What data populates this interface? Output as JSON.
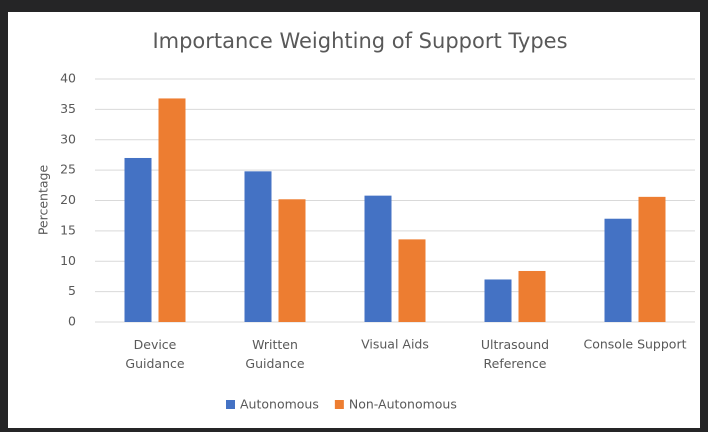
{
  "chart_data": {
    "type": "bar",
    "title": "Importance Weighting of Support Types",
    "y_label": "Percentage",
    "categories": [
      "Device\nGuidance",
      "Written\nGuidance",
      "Visual Aids",
      "Ultrasound\nReference",
      "Console Support"
    ],
    "series": [
      {
        "name": "Autonomous",
        "color": "#4472c4",
        "values": [
          27,
          24.8,
          20.8,
          7,
          17
        ]
      },
      {
        "name": "Non-Autonomous",
        "color": "#ed7d31",
        "values": [
          36.8,
          20.2,
          13.6,
          8.4,
          20.6
        ]
      }
    ],
    "ylim": [
      0,
      40
    ],
    "yticks": [
      0,
      5,
      10,
      15,
      20,
      25,
      30,
      35,
      40
    ],
    "grid": true,
    "legend": "bottom"
  }
}
